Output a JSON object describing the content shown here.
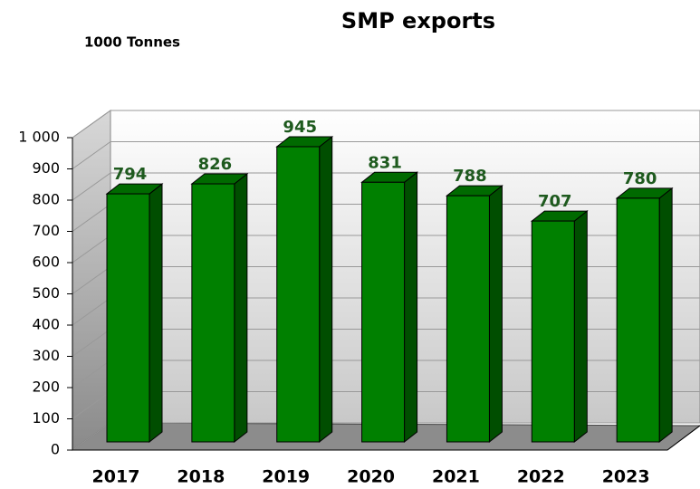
{
  "chart_data": {
    "type": "bar3d",
    "title": "SMP exports",
    "y_axis_label": "1000 Tonnes",
    "categories": [
      "2017",
      "2018",
      "2019",
      "2020",
      "2021",
      "2022",
      "2023"
    ],
    "values": [
      794,
      826,
      945,
      831,
      788,
      707,
      780
    ],
    "color": "#008000",
    "value_label_color": "#1e5a1e",
    "ylim": [
      0,
      1000
    ],
    "yticks": [
      0,
      100,
      200,
      300,
      400,
      500,
      600,
      700,
      800,
      900,
      {
        "value": 1000,
        "label": "1 000"
      }
    ],
    "grid": true
  }
}
